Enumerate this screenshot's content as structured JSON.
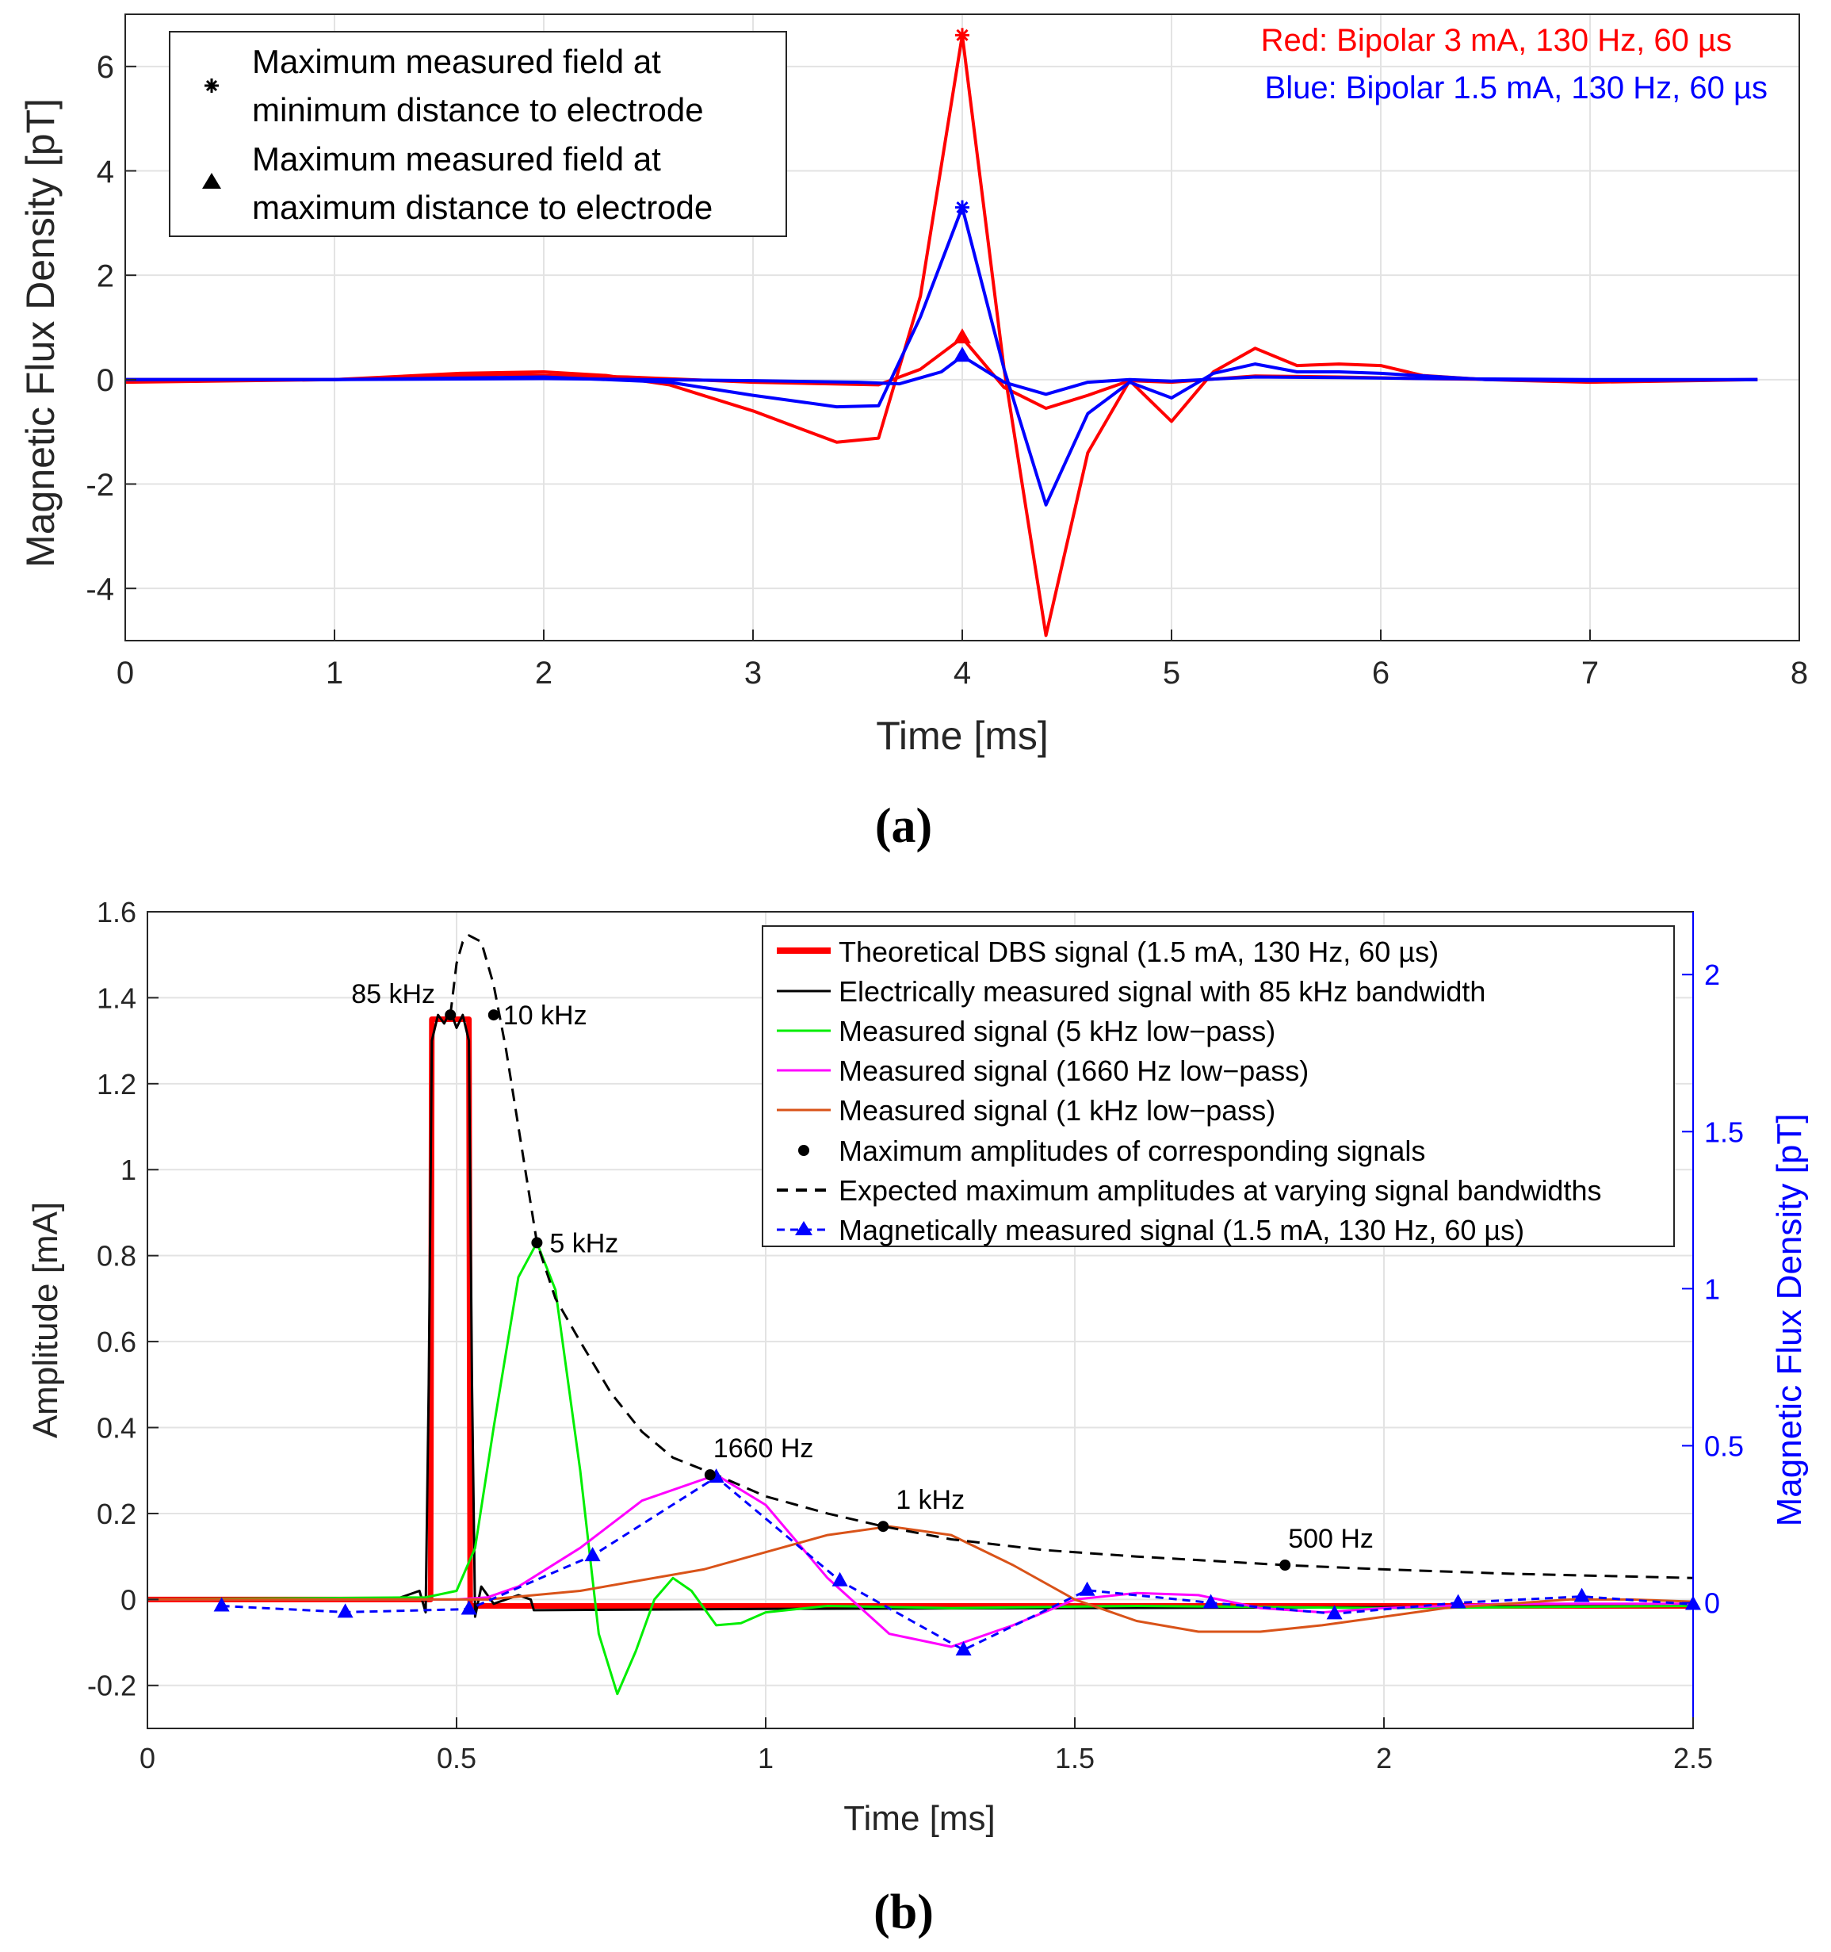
{
  "chart_data": [
    {
      "id": "a",
      "type": "line",
      "panel_label": "(a)",
      "title": "",
      "xlabel": "Time [ms]",
      "ylabel": "Magnetic Flux Density [pT]",
      "xlim": [
        0,
        8
      ],
      "ylim": [
        -5,
        7
      ],
      "xticks": [
        0,
        1,
        2,
        3,
        4,
        5,
        6,
        7,
        8
      ],
      "xtick_labels": [
        "0",
        "1",
        "2",
        "3",
        "4",
        "5",
        "6",
        "7",
        "8"
      ],
      "yticks": [
        -4,
        -2,
        0,
        2,
        4,
        6
      ],
      "ytick_labels": [
        "-4",
        "-2",
        "0",
        "2",
        "4",
        "6"
      ],
      "grid": true,
      "annotations": [
        {
          "text": "Red: Bipolar 3 mA, 130 Hz, 60 µs",
          "color": "#ff0000"
        },
        {
          "text": "Blue: Bipolar 1.5 mA, 130 Hz, 60 µs",
          "color": "#0000ff"
        }
      ],
      "legend": {
        "placement": "top-left",
        "entries": [
          {
            "marker": "asterisk",
            "line1": "Maximum measured field at",
            "line2": "minimum distance to electrode"
          },
          {
            "marker": "triangle",
            "line1": "Maximum measured field at",
            "line2": "maximum distance to electrode"
          }
        ]
      },
      "series": [
        {
          "name": "Red, minimum distance (3 mA)",
          "color": "#ff0000",
          "x": [
            0,
            1,
            1.6,
            2.0,
            2.3,
            2.6,
            3.0,
            3.4,
            3.6,
            3.8,
            4.0,
            4.2,
            4.4,
            4.6,
            4.8,
            5.0,
            5.2,
            5.4,
            5.6,
            5.8,
            6.0,
            6.2,
            6.5,
            7.0,
            7.8
          ],
          "y": [
            -0.05,
            0,
            0.12,
            0.15,
            0.08,
            -0.1,
            -0.6,
            -1.2,
            -1.12,
            1.6,
            6.6,
            0.2,
            -4.9,
            -1.4,
            -0.02,
            -0.8,
            0.15,
            0.6,
            0.27,
            0.3,
            0.27,
            0.08,
            0,
            -0.05,
            0
          ]
        },
        {
          "name": "Red, maximum distance (3 mA)",
          "color": "#ff0000",
          "x": [
            0,
            1,
            1.8,
            2.4,
            3.0,
            3.6,
            3.8,
            4.0,
            4.2,
            4.4,
            4.6,
            4.8,
            5.0,
            5.4,
            5.8,
            6.2,
            7.0,
            7.8
          ],
          "y": [
            0,
            0,
            0.1,
            0.05,
            -0.05,
            -0.1,
            0.2,
            0.8,
            -0.15,
            -0.55,
            -0.3,
            -0.02,
            -0.05,
            0.07,
            0.05,
            0.02,
            -0.02,
            0
          ]
        },
        {
          "name": "Blue, minimum distance (1.5 mA)",
          "color": "#0000ff",
          "x": [
            0,
            1,
            2.0,
            2.6,
            3.0,
            3.4,
            3.6,
            3.8,
            4.0,
            4.2,
            4.4,
            4.6,
            4.8,
            5.0,
            5.2,
            5.4,
            5.6,
            5.8,
            6.0,
            6.5,
            7.0,
            7.8
          ],
          "y": [
            0,
            0,
            0.05,
            -0.05,
            -0.3,
            -0.52,
            -0.5,
            1.2,
            3.3,
            0.2,
            -2.4,
            -0.65,
            -0.05,
            -0.35,
            0.12,
            0.3,
            0.15,
            0.15,
            0.12,
            0,
            -0.02,
            0
          ]
        },
        {
          "name": "Blue, maximum distance (1.5 mA)",
          "color": "#0000ff",
          "x": [
            0,
            1,
            2.0,
            3.0,
            3.5,
            3.7,
            3.9,
            4.0,
            4.2,
            4.4,
            4.6,
            4.8,
            5.0,
            5.4,
            5.8,
            6.2,
            7.0,
            7.8
          ],
          "y": [
            0,
            0,
            0.02,
            -0.02,
            -0.05,
            -0.08,
            0.15,
            0.45,
            -0.05,
            -0.28,
            -0.05,
            0,
            -0.03,
            0.05,
            0.04,
            0.02,
            0,
            0
          ]
        }
      ],
      "markers": [
        {
          "type": "asterisk",
          "x": 4.0,
          "y": 6.6,
          "color": "#ff0000"
        },
        {
          "type": "asterisk",
          "x": 4.0,
          "y": 3.3,
          "color": "#0000ff"
        },
        {
          "type": "triangle",
          "x": 4.0,
          "y": 0.8,
          "color": "#ff0000"
        },
        {
          "type": "triangle",
          "x": 4.0,
          "y": 0.45,
          "color": "#0000ff"
        }
      ]
    },
    {
      "id": "b",
      "type": "line",
      "panel_label": "(b)",
      "title": "",
      "xlabel": "Time [ms]",
      "ylabel": "Amplitude [mA]",
      "y2label": "Magnetic Flux Density [pT]",
      "xlim": [
        0,
        2.5
      ],
      "ylim": [
        -0.3,
        1.6
      ],
      "y2lim": [
        -0.4,
        2.2
      ],
      "xticks": [
        0,
        0.5,
        1,
        1.5,
        2,
        2.5
      ],
      "xtick_labels": [
        "0",
        "0.5",
        "1",
        "1.5",
        "2",
        "2.5"
      ],
      "yticks": [
        -0.2,
        0,
        0.2,
        0.4,
        0.6,
        0.8,
        1,
        1.2,
        1.4,
        1.6
      ],
      "ytick_labels": [
        "-0.2",
        "0",
        "0.2",
        "0.4",
        "0.6",
        "0.8",
        "1",
        "1.2",
        "1.4",
        "1.6"
      ],
      "y2ticks": [
        0,
        0.5,
        1,
        1.5,
        2
      ],
      "y2tick_labels": [
        "0",
        "0.5",
        "1",
        "1.5",
        "2"
      ],
      "grid": true,
      "legend": {
        "placement": "top-right",
        "entries": [
          {
            "label": "Theoretical DBS signal (1.5 mA, 130 Hz, 60 µs)",
            "color": "#ff0000",
            "style": "thick"
          },
          {
            "label": "Electrically measured signal with 85 kHz bandwidth",
            "color": "#000000",
            "style": "solid"
          },
          {
            "label": "Measured signal (5 kHz low−pass)",
            "color": "#00ee00",
            "style": "solid"
          },
          {
            "label": "Measured signal (1660 Hz low−pass)",
            "color": "#ff00ff",
            "style": "solid"
          },
          {
            "label": "Measured signal (1 kHz low−pass)",
            "color": "#d95319",
            "style": "solid"
          },
          {
            "label": "Maximum amplitudes of corresponding signals",
            "color": "#000000",
            "style": "dot"
          },
          {
            "label": "Expected maximum amplitudes at varying signal bandwidths",
            "color": "#000000",
            "style": "dashed"
          },
          {
            "label": "Magnetically measured signal (1.5 mA, 130 Hz, 60 µs)",
            "color": "#0000ff",
            "style": "dashed-triangle"
          }
        ]
      },
      "series": [
        {
          "name": "Theoretical DBS signal (1.5 mA, 130 Hz, 60 µs)",
          "color": "#ff0000",
          "x": [
            0,
            0.458,
            0.46,
            0.52,
            0.522,
            0.6,
            2.5
          ],
          "y": [
            0,
            0,
            1.35,
            1.35,
            -0.015,
            -0.015,
            -0.015
          ]
        },
        {
          "name": "Electrically measured signal with 85 kHz bandwidth",
          "color": "#000000",
          "x": [
            0,
            0.4,
            0.44,
            0.45,
            0.455,
            0.46,
            0.47,
            0.48,
            0.49,
            0.5,
            0.51,
            0.52,
            0.525,
            0.53,
            0.54,
            0.56,
            0.6,
            0.62,
            0.625,
            1.0,
            1.5,
            2.0,
            2.5
          ],
          "y": [
            0,
            0,
            0.02,
            -0.03,
            0.5,
            1.3,
            1.36,
            1.34,
            1.37,
            1.33,
            1.36,
            1.3,
            0.5,
            -0.04,
            0.03,
            -0.01,
            0.01,
            0.0,
            -0.025,
            -0.022,
            -0.02,
            -0.018,
            -0.015
          ]
        },
        {
          "name": "Measured signal (5 kHz low-pass)",
          "color": "#00ee00",
          "x": [
            0,
            0.45,
            0.5,
            0.53,
            0.56,
            0.6,
            0.63,
            0.66,
            0.7,
            0.73,
            0.76,
            0.79,
            0.82,
            0.85,
            0.88,
            0.92,
            0.96,
            1.0,
            1.1,
            1.3,
            1.6,
            2.0,
            2.5
          ],
          "y": [
            0,
            0.005,
            0.02,
            0.12,
            0.4,
            0.75,
            0.83,
            0.72,
            0.3,
            -0.08,
            -0.22,
            -0.12,
            0.0,
            0.05,
            0.02,
            -0.06,
            -0.055,
            -0.03,
            -0.015,
            -0.02,
            -0.015,
            -0.02,
            -0.015
          ]
        },
        {
          "name": "Measured signal (1660 Hz low-pass)",
          "color": "#ff00ff",
          "x": [
            0,
            0.5,
            0.55,
            0.6,
            0.7,
            0.8,
            0.92,
            1.0,
            1.1,
            1.2,
            1.3,
            1.4,
            1.5,
            1.6,
            1.7,
            1.8,
            1.9,
            2.0,
            2.2,
            2.5
          ],
          "y": [
            0,
            0.0,
            0.005,
            0.03,
            0.12,
            0.23,
            0.29,
            0.22,
            0.05,
            -0.08,
            -0.11,
            -0.06,
            0.0,
            0.015,
            0.01,
            -0.02,
            -0.03,
            -0.02,
            -0.01,
            -0.01
          ]
        },
        {
          "name": "Measured signal (1 kHz low-pass)",
          "color": "#d95319",
          "x": [
            0,
            0.55,
            0.7,
            0.9,
            1.0,
            1.1,
            1.2,
            1.3,
            1.4,
            1.5,
            1.6,
            1.7,
            1.8,
            1.9,
            2.0,
            2.1,
            2.2,
            2.3,
            2.4,
            2.5
          ],
          "y": [
            0,
            0.0,
            0.02,
            0.07,
            0.11,
            0.15,
            0.17,
            0.15,
            0.08,
            0.0,
            -0.05,
            -0.075,
            -0.075,
            -0.06,
            -0.04,
            -0.02,
            -0.01,
            0.0,
            0.0,
            -0.005
          ]
        },
        {
          "name": "Expected maximum amplitudes at varying signal bandwidths",
          "color": "#000000",
          "style": "dashed",
          "x": [
            0.49,
            0.5,
            0.51,
            0.52,
            0.54,
            0.56,
            0.58,
            0.6,
            0.63,
            0.66,
            0.7,
            0.75,
            0.8,
            0.85,
            0.92,
            1.0,
            1.1,
            1.19,
            1.3,
            1.45,
            1.6,
            1.84,
            2.0,
            2.2,
            2.5
          ],
          "y": [
            1.36,
            1.48,
            1.53,
            1.545,
            1.53,
            1.43,
            1.28,
            1.1,
            0.83,
            0.7,
            0.6,
            0.48,
            0.39,
            0.33,
            0.29,
            0.24,
            0.2,
            0.17,
            0.14,
            0.115,
            0.1,
            0.08,
            0.07,
            0.06,
            0.05
          ]
        },
        {
          "name": "Magnetically measured signal (1.5 mA, 130 Hz, 60 µs)",
          "color": "#0000ff",
          "style": "dashed",
          "axis": "right",
          "x": [
            0.12,
            0.32,
            0.52,
            0.72,
            0.92,
            1.12,
            1.32,
            1.52,
            1.72,
            1.92,
            2.12,
            2.32,
            2.5
          ],
          "y": [
            -0.01,
            -0.03,
            -0.02,
            0.15,
            0.4,
            0.07,
            -0.15,
            0.04,
            0.0,
            -0.035,
            0.0,
            0.02,
            -0.005
          ]
        }
      ],
      "max_points": [
        {
          "x": 0.49,
          "y": 1.36,
          "label": "85 kHz"
        },
        {
          "x": 0.56,
          "y": 1.36,
          "label": "10 kHz"
        },
        {
          "x": 0.63,
          "y": 0.83,
          "label": "5 kHz"
        },
        {
          "x": 0.91,
          "y": 0.29,
          "label": "1660 Hz"
        },
        {
          "x": 1.19,
          "y": 0.17,
          "label": "1 kHz"
        },
        {
          "x": 1.84,
          "y": 0.08,
          "label": "500 Hz"
        }
      ]
    }
  ]
}
